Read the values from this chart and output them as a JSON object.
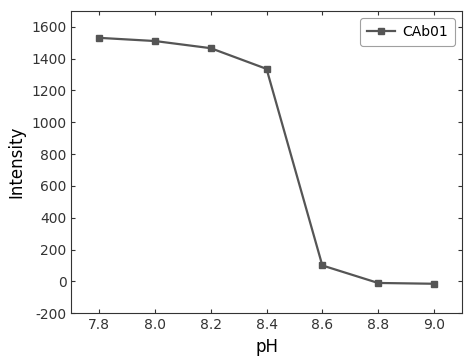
{
  "x": [
    7.8,
    8.0,
    8.2,
    8.4,
    8.6,
    8.8,
    9.0
  ],
  "y": [
    1530,
    1510,
    1465,
    1335,
    100,
    -10,
    -15
  ],
  "xlabel": "pH",
  "ylabel": "Intensity",
  "legend_label": "CAb01",
  "xlim": [
    7.7,
    9.1
  ],
  "ylim": [
    -200,
    1700
  ],
  "xticks": [
    7.8,
    8.0,
    8.2,
    8.4,
    8.6,
    8.8,
    9.0
  ],
  "yticks": [
    -200,
    0,
    200,
    400,
    600,
    800,
    1000,
    1200,
    1400,
    1600
  ],
  "line_color": "#555555",
  "marker": "s",
  "markersize": 5,
  "linewidth": 1.6,
  "background_color": "#ffffff",
  "tick_fontsize": 10,
  "label_fontsize": 12
}
